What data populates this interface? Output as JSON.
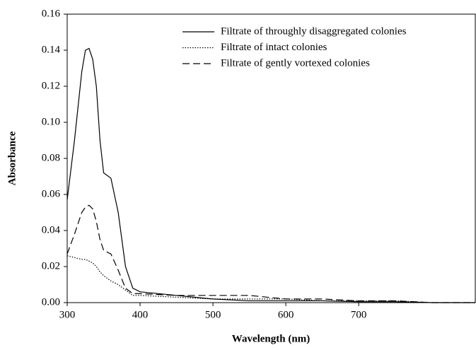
{
  "chart_data": {
    "type": "line",
    "xlabel": "Wavelength (nm)",
    "ylabel": "Absorbance",
    "x": [
      300,
      310,
      320,
      325,
      330,
      335,
      340,
      345,
      350,
      360,
      370,
      380,
      390,
      400,
      450,
      500,
      550,
      600,
      650,
      700,
      750,
      800,
      860
    ],
    "series": [
      {
        "name": "Filtrate of throughly disaggregated colonies",
        "color": "#000000",
        "linestyle": "solid",
        "values": [
          0.057,
          0.09,
          0.128,
          0.14,
          0.141,
          0.135,
          0.12,
          0.09,
          0.072,
          0.069,
          0.05,
          0.02,
          0.008,
          0.006,
          0.004,
          0.002,
          0.001,
          0.001,
          0.001,
          0.0005,
          0.0005,
          0,
          0
        ]
      },
      {
        "name": "Filtrate of intact colonies",
        "color": "#000000",
        "linestyle": "dotted",
        "values": [
          0.026,
          0.025,
          0.024,
          0.024,
          0.023,
          0.022,
          0.02,
          0.017,
          0.015,
          0.012,
          0.01,
          0.007,
          0.004,
          0.004,
          0.003,
          0.002,
          0.002,
          0.002,
          0.001,
          0.001,
          0.001,
          0,
          0
        ]
      },
      {
        "name": "Filtrate of gently vortexed colonies",
        "color": "#000000",
        "linestyle": "dashed",
        "values": [
          0.027,
          0.038,
          0.05,
          0.053,
          0.054,
          0.052,
          0.045,
          0.035,
          0.029,
          0.027,
          0.018,
          0.008,
          0.005,
          0.005,
          0.004,
          0.004,
          0.004,
          0.002,
          0.002,
          0.001,
          0.001,
          0,
          0
        ]
      }
    ],
    "xlim": [
      300,
      860
    ],
    "xticks": [
      300,
      400,
      500,
      600,
      700
    ],
    "ylim": [
      0,
      0.16
    ],
    "yticks": [
      {
        "value": 0,
        "label": "0.00"
      },
      {
        "value": 0.02,
        "label": "0.02"
      },
      {
        "value": 0.04,
        "label": "0.04"
      },
      {
        "value": 0.06,
        "label": "0.06"
      },
      {
        "value": 0.08,
        "label": "0.08"
      },
      {
        "value": 0.1,
        "label": "0.10"
      },
      {
        "value": 0.12,
        "label": "0.12"
      },
      {
        "value": 0.14,
        "label": "0.14"
      },
      {
        "value": 0.16,
        "label": "0.16"
      }
    ],
    "legend": "upper right"
  }
}
